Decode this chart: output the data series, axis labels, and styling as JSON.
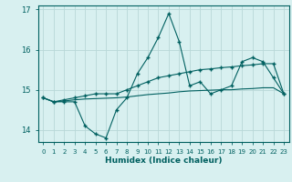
{
  "xlabel": "Humidex (Indice chaleur)",
  "x": [
    0,
    1,
    2,
    3,
    4,
    5,
    6,
    7,
    8,
    9,
    10,
    11,
    12,
    13,
    14,
    15,
    16,
    17,
    18,
    19,
    20,
    21,
    22,
    23
  ],
  "line1": [
    14.8,
    14.7,
    14.7,
    14.7,
    14.1,
    13.9,
    13.8,
    14.5,
    14.8,
    15.4,
    15.8,
    16.3,
    16.9,
    16.2,
    15.1,
    15.2,
    14.9,
    15.0,
    15.1,
    15.7,
    15.8,
    15.7,
    15.3,
    14.9
  ],
  "line2": [
    14.8,
    14.7,
    14.75,
    14.8,
    14.85,
    14.9,
    14.9,
    14.9,
    15.0,
    15.1,
    15.2,
    15.3,
    15.35,
    15.4,
    15.45,
    15.5,
    15.52,
    15.55,
    15.57,
    15.6,
    15.62,
    15.65,
    15.65,
    14.9
  ],
  "line3": [
    14.8,
    14.7,
    14.72,
    14.75,
    14.77,
    14.78,
    14.79,
    14.8,
    14.82,
    14.85,
    14.88,
    14.9,
    14.92,
    14.95,
    14.97,
    14.98,
    14.99,
    15.0,
    15.0,
    15.02,
    15.03,
    15.05,
    15.05,
    14.9
  ],
  "line_color": "#006060",
  "bg_color": "#d8f0f0",
  "grid_color": "#b8d8d8",
  "ylim": [
    13.7,
    17.1
  ],
  "yticks": [
    14,
    15,
    16,
    17
  ],
  "xticks": [
    0,
    1,
    2,
    3,
    4,
    5,
    6,
    7,
    8,
    9,
    10,
    11,
    12,
    13,
    14,
    15,
    16,
    17,
    18,
    19,
    20,
    21,
    22,
    23
  ]
}
